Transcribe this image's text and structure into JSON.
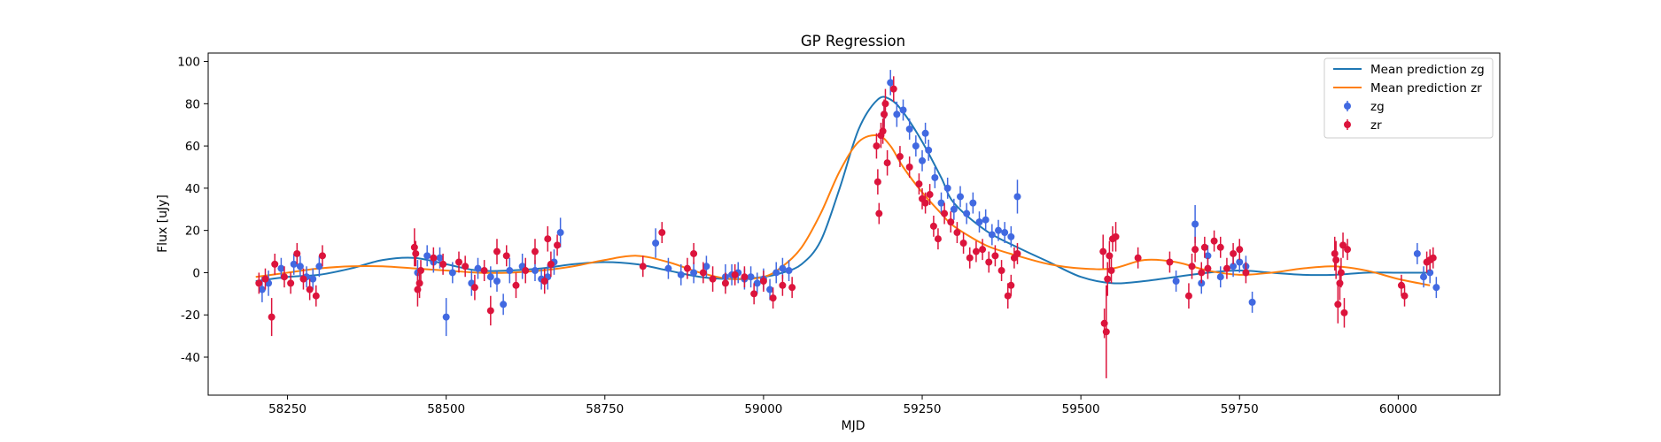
{
  "chart_data": {
    "type": "scatter",
    "title": "GP Regression",
    "xlabel": "MJD",
    "ylabel": "Flux [uJy]",
    "xlim": [
      58125,
      60160
    ],
    "ylim": [
      -58,
      104
    ],
    "xticks": [
      58250,
      58500,
      58750,
      59000,
      59250,
      59500,
      59750,
      60000
    ],
    "yticks": [
      -40,
      -20,
      0,
      20,
      40,
      60,
      80,
      100
    ],
    "grid": false,
    "legend_position": "top-right",
    "legend": [
      "Mean prediction zg",
      "Mean prediction zr",
      "zg",
      "zr"
    ],
    "colors": {
      "zg_line": "#1f77b4",
      "zr_line": "#ff7f0e",
      "zg_points": "#4169e1",
      "zr_points": "#dc143c"
    },
    "lines": [
      {
        "name": "Mean prediction zg",
        "x": [
          58200,
          58250,
          58300,
          58350,
          58400,
          58450,
          58500,
          58550,
          58600,
          58650,
          58700,
          58750,
          58800,
          58850,
          58900,
          58950,
          59000,
          59030,
          59060,
          59090,
          59120,
          59150,
          59180,
          59200,
          59220,
          59250,
          59280,
          59300,
          59350,
          59400,
          59450,
          59500,
          59550,
          59600,
          59650,
          59700,
          59750,
          59800,
          59850,
          59900,
          59950,
          60000,
          60050
        ],
        "y": [
          -4,
          -2,
          -1,
          2,
          6,
          7,
          4,
          1,
          1,
          2,
          4,
          5,
          4,
          1,
          -2,
          -3,
          -2,
          0,
          4,
          15,
          40,
          68,
          82,
          82,
          76,
          62,
          45,
          33,
          20,
          12,
          5,
          -2,
          -5,
          -4,
          -2,
          0,
          1,
          0,
          -1,
          -1,
          0,
          0,
          0
        ]
      },
      {
        "name": "Mean prediction zr",
        "x": [
          58200,
          58250,
          58300,
          58350,
          58400,
          58450,
          58500,
          58550,
          58600,
          58650,
          58700,
          58750,
          58800,
          58850,
          58900,
          58950,
          59000,
          59030,
          59060,
          59090,
          59120,
          59150,
          59180,
          59200,
          59220,
          59250,
          59280,
          59300,
          59350,
          59400,
          59450,
          59500,
          59550,
          59600,
          59650,
          59700,
          59750,
          59800,
          59850,
          59900,
          59950,
          60000,
          60050
        ],
        "y": [
          -2,
          0,
          2,
          3,
          3,
          2,
          1,
          0,
          0,
          1,
          3,
          6,
          8,
          5,
          0,
          -3,
          -2,
          3,
          12,
          28,
          48,
          62,
          65,
          60,
          50,
          38,
          28,
          22,
          13,
          8,
          4,
          2,
          2,
          6,
          5,
          1,
          -1,
          0,
          2,
          3,
          1,
          -3,
          -6
        ]
      }
    ],
    "series": [
      {
        "name": "zg",
        "x": [
          58210,
          58220,
          58240,
          58260,
          58270,
          58280,
          58290,
          58300,
          58455,
          58470,
          58480,
          58490,
          58500,
          58510,
          58540,
          58550,
          58570,
          58580,
          58590,
          58600,
          58620,
          58640,
          58650,
          58660,
          58670,
          58680,
          58830,
          58850,
          58870,
          58890,
          58910,
          58940,
          58950,
          58960,
          58970,
          58980,
          58990,
          59000,
          59010,
          59020,
          59030,
          59040,
          59190,
          59200,
          59210,
          59220,
          59230,
          59240,
          59250,
          59255,
          59260,
          59270,
          59280,
          59290,
          59300,
          59310,
          59320,
          59330,
          59340,
          59350,
          59360,
          59370,
          59380,
          59390,
          59400,
          59650,
          59680,
          59690,
          59700,
          59720,
          59740,
          59750,
          59760,
          59770,
          60030,
          60040,
          60050,
          60060
        ],
        "y": [
          -8,
          -5,
          2,
          4,
          3,
          -2,
          -3,
          3,
          0,
          8,
          5,
          7,
          -21,
          0,
          -5,
          2,
          -2,
          -4,
          -15,
          1,
          3,
          1,
          -3,
          -2,
          5,
          19,
          14,
          2,
          -1,
          0,
          3,
          -2,
          -1,
          0,
          -3,
          -2,
          -5,
          -3,
          -8,
          0,
          2,
          1,
          75,
          90,
          75,
          77,
          68,
          60,
          53,
          66,
          58,
          45,
          33,
          40,
          30,
          36,
          28,
          33,
          24,
          25,
          18,
          20,
          19,
          17,
          36,
          -4,
          23,
          -5,
          8,
          -2,
          3,
          5,
          3,
          -14,
          9,
          -2,
          0,
          -7
        ],
        "err": [
          6,
          6,
          5,
          5,
          5,
          5,
          5,
          5,
          6,
          5,
          5,
          5,
          9,
          5,
          6,
          5,
          5,
          5,
          5,
          6,
          6,
          5,
          5,
          6,
          6,
          7,
          7,
          5,
          5,
          5,
          5,
          6,
          5,
          5,
          5,
          5,
          5,
          5,
          5,
          5,
          5,
          5,
          6,
          6,
          6,
          5,
          5,
          5,
          5,
          5,
          5,
          5,
          5,
          5,
          5,
          5,
          5,
          5,
          5,
          5,
          5,
          5,
          5,
          5,
          8,
          5,
          9,
          5,
          5,
          5,
          5,
          5,
          5,
          5,
          5,
          5,
          5,
          5
        ]
      },
      {
        "name": "zr",
        "x": [
          58205,
          58215,
          58225,
          58230,
          58245,
          58255,
          58265,
          58275,
          58285,
          58295,
          58305,
          58450,
          58452,
          58455,
          58458,
          58460,
          58480,
          58495,
          58520,
          58530,
          58545,
          58560,
          58570,
          58580,
          58595,
          58610,
          58625,
          58640,
          58655,
          58660,
          58665,
          58675,
          58810,
          58840,
          58880,
          58890,
          58905,
          58920,
          58940,
          58955,
          58970,
          58985,
          59000,
          59015,
          59030,
          59045,
          59178,
          59180,
          59182,
          59185,
          59188,
          59190,
          59192,
          59195,
          59205,
          59215,
          59230,
          59245,
          59250,
          59255,
          59262,
          59268,
          59275,
          59285,
          59295,
          59305,
          59315,
          59325,
          59335,
          59345,
          59355,
          59365,
          59375,
          59385,
          59390,
          59395,
          59400,
          59535,
          59537,
          59540,
          59542,
          59545,
          59548,
          59550,
          59555,
          59590,
          59640,
          59670,
          59675,
          59680,
          59690,
          59695,
          59700,
          59710,
          59720,
          59730,
          59740,
          59750,
          59760,
          59900,
          59902,
          59905,
          59908,
          59910,
          59913,
          59915,
          59920,
          60005,
          60010,
          60045,
          60050,
          60055
        ],
        "y": [
          -5,
          -3,
          -21,
          4,
          -2,
          -5,
          9,
          -3,
          -8,
          -11,
          8,
          12,
          9,
          -8,
          -5,
          1,
          7,
          4,
          5,
          3,
          -7,
          1,
          -18,
          10,
          8,
          -6,
          1,
          10,
          -4,
          16,
          4,
          13,
          3,
          19,
          2,
          9,
          0,
          -3,
          -5,
          -1,
          -2,
          -10,
          -4,
          -12,
          -6,
          -7,
          60,
          43,
          28,
          65,
          67,
          75,
          80,
          52,
          87,
          55,
          50,
          42,
          35,
          33,
          37,
          22,
          16,
          28,
          24,
          19,
          14,
          7,
          10,
          11,
          5,
          8,
          1,
          -11,
          -6,
          7,
          9,
          10,
          -24,
          -28,
          -3,
          8,
          1,
          16,
          17,
          7,
          5,
          -11,
          3,
          11,
          0,
          12,
          2,
          15,
          12,
          2,
          9,
          11,
          0,
          9,
          6,
          -15,
          -5,
          0,
          13,
          -19,
          11,
          -6,
          -11,
          5,
          6,
          7
        ],
        "err": [
          5,
          5,
          9,
          5,
          5,
          5,
          5,
          5,
          5,
          5,
          5,
          9,
          6,
          8,
          7,
          5,
          5,
          5,
          5,
          5,
          6,
          5,
          7,
          6,
          5,
          6,
          6,
          6,
          6,
          6,
          6,
          5,
          5,
          5,
          5,
          5,
          5,
          6,
          5,
          5,
          5,
          5,
          5,
          5,
          5,
          5,
          6,
          6,
          5,
          6,
          6,
          7,
          7,
          6,
          6,
          5,
          5,
          5,
          5,
          5,
          5,
          5,
          5,
          5,
          5,
          5,
          5,
          5,
          5,
          5,
          5,
          5,
          5,
          6,
          5,
          5,
          5,
          8,
          7,
          22,
          8,
          7,
          6,
          6,
          7,
          5,
          5,
          6,
          6,
          6,
          5,
          5,
          5,
          5,
          5,
          5,
          5,
          5,
          5,
          8,
          9,
          9,
          8,
          7,
          6,
          7,
          5,
          5,
          5,
          5,
          5,
          5
        ]
      }
    ]
  }
}
